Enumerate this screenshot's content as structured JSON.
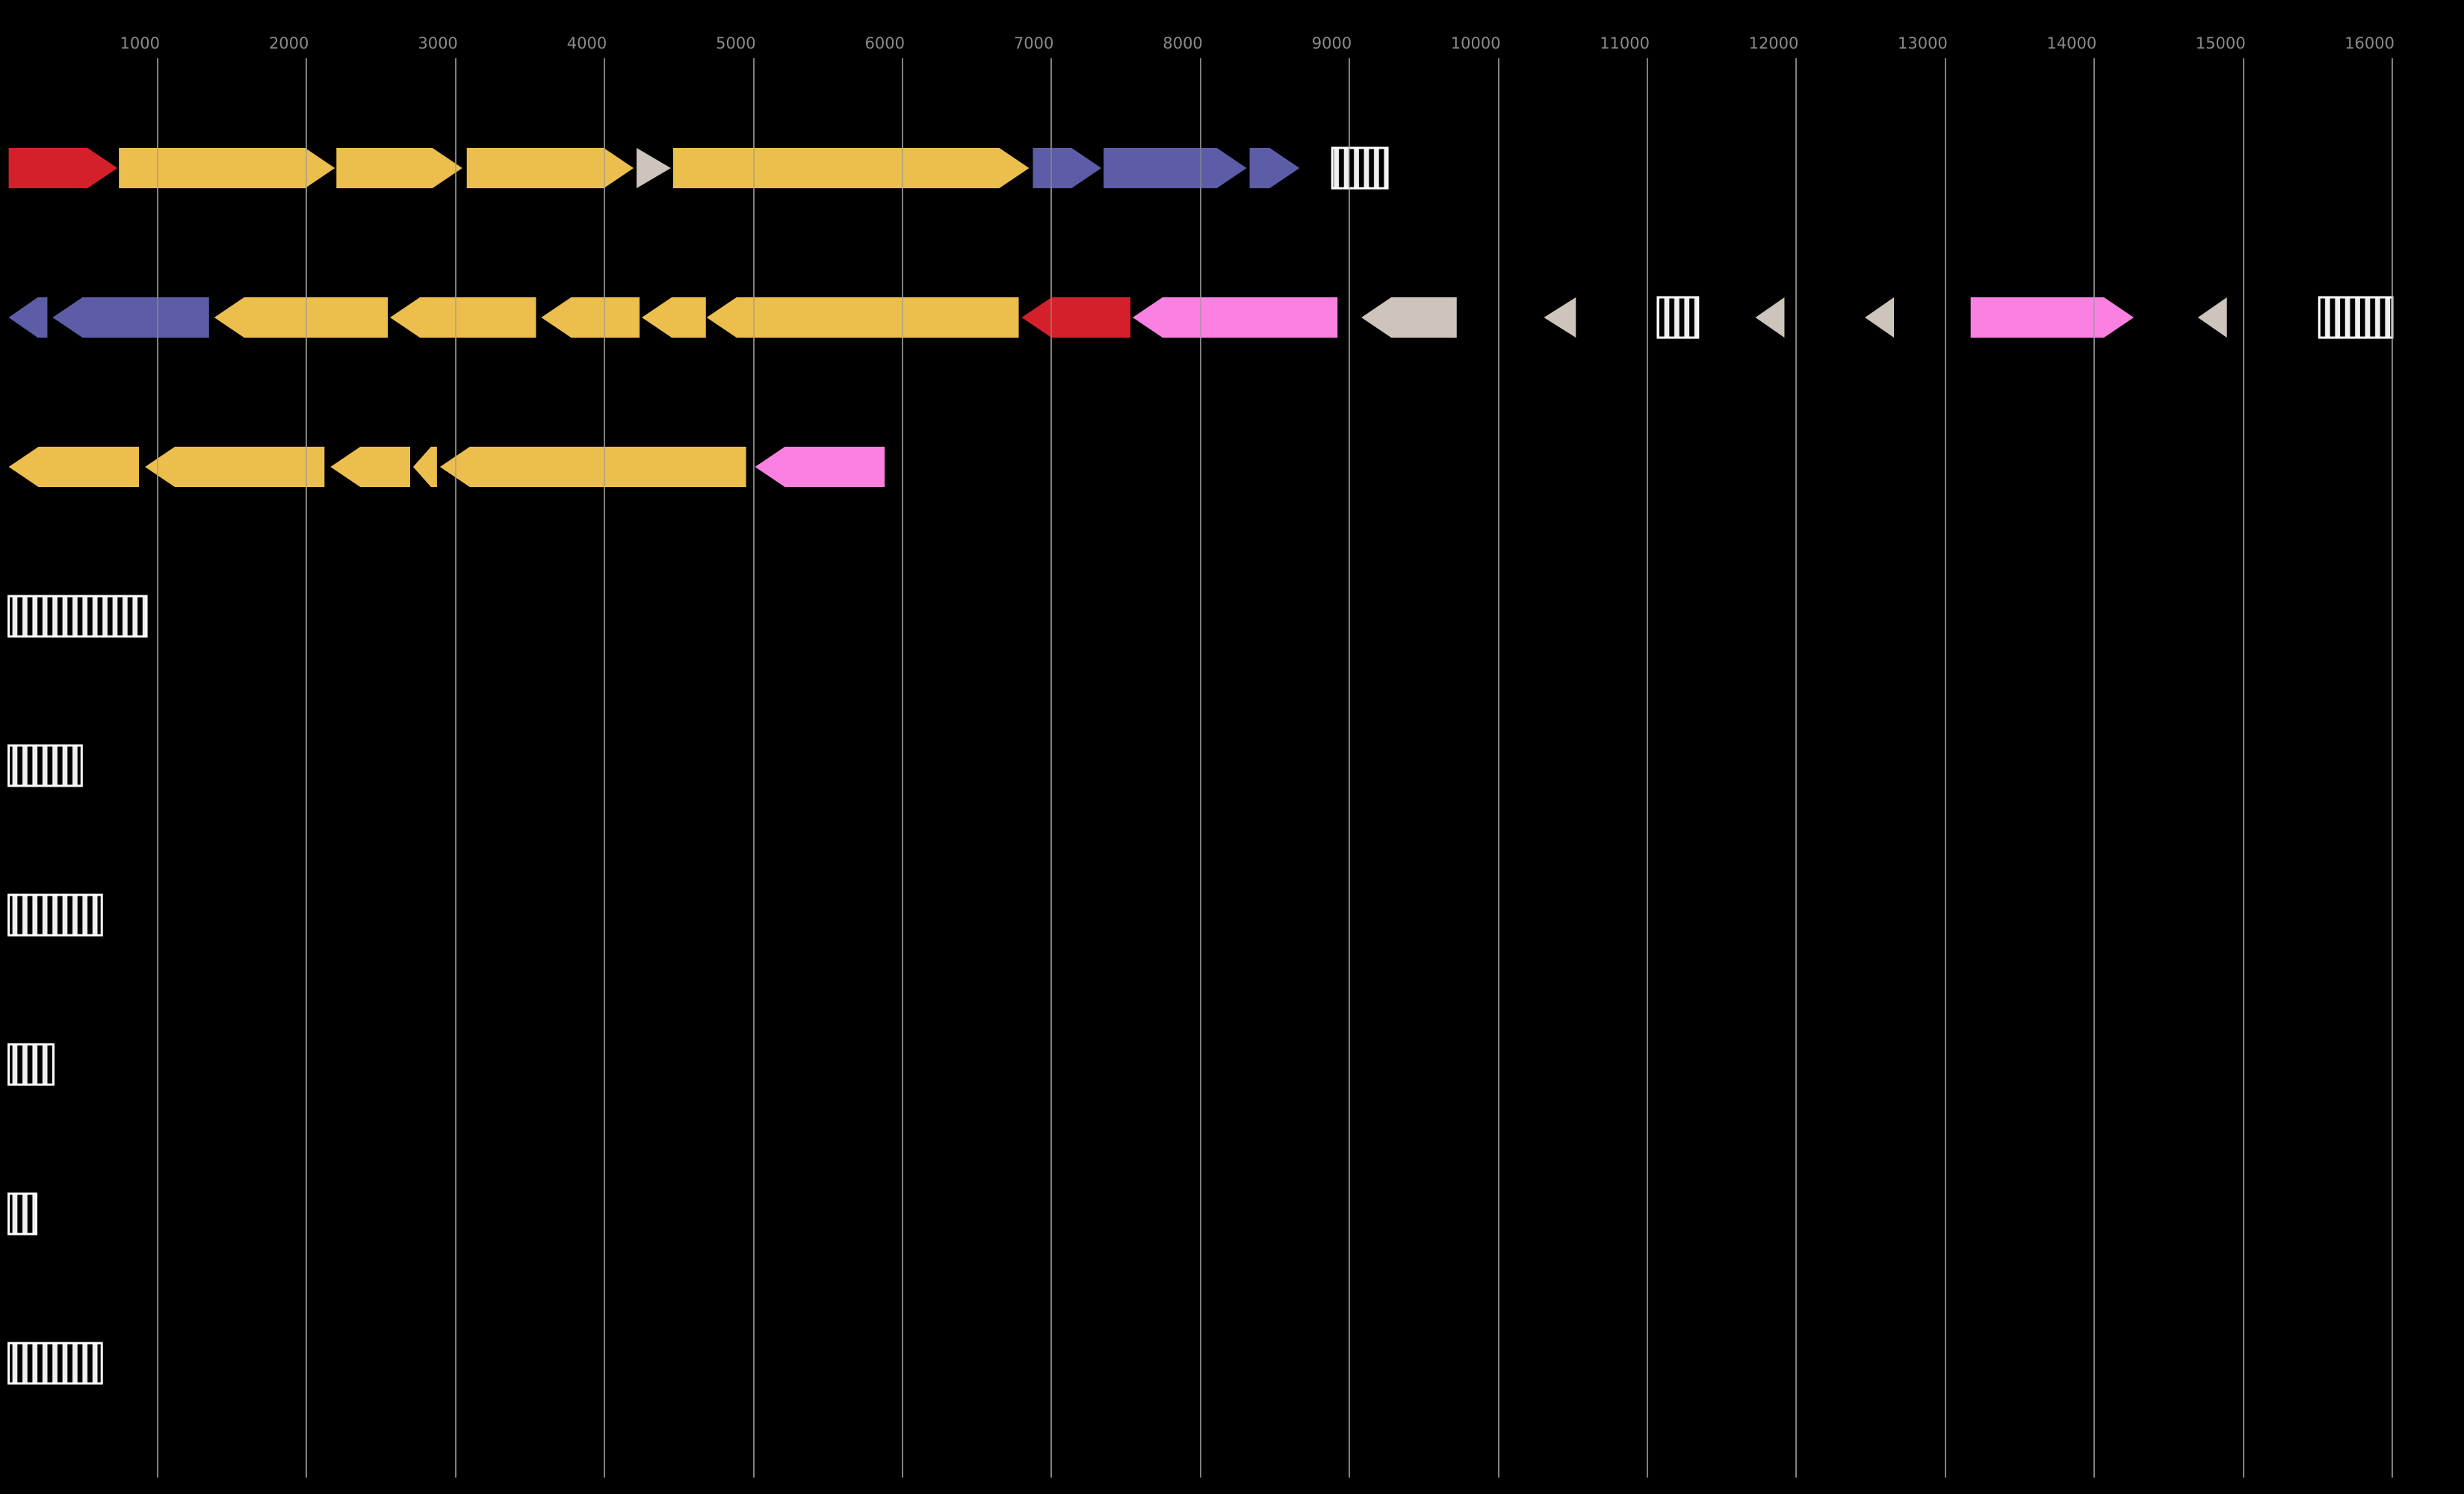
{
  "figure_type": "genome-feature-map",
  "palette": {
    "yellow": "#ECBE4D",
    "red": "#D4202A",
    "blue": "#5C5DA6",
    "pink": "#FA80E2",
    "gray": "#CDC4BB",
    "hatch_stripe": "#F0F0F0",
    "hatch_border": "#FFFFFF",
    "background": "#000000",
    "axis_label": "#8A8A8A",
    "gridline": "#7F7F7F"
  },
  "axis": {
    "tick_values": [
      1000,
      2000,
      3000,
      4000,
      5000,
      6000,
      7000,
      8000,
      9000,
      10000,
      11000,
      12000,
      13000,
      14000,
      15000,
      16000
    ],
    "tick_labels": [
      "1000",
      "2000",
      "3000",
      "4000",
      "5000",
      "6000",
      "7000",
      "8000",
      "9000",
      "10000",
      "11000",
      "12000",
      "13000",
      "14000",
      "15000",
      "16000"
    ]
  },
  "tracks": [
    {
      "name": "track-1",
      "features": [
        {
          "shape": "arrow",
          "direction": "right",
          "color": "red",
          "start": 0,
          "end": 730
        },
        {
          "shape": "arrow",
          "direction": "right",
          "color": "yellow",
          "start": 740,
          "end": 2190
        },
        {
          "shape": "arrow",
          "direction": "right",
          "color": "yellow",
          "start": 2200,
          "end": 3045
        },
        {
          "shape": "arrow",
          "direction": "right",
          "color": "yellow",
          "start": 3075,
          "end": 4195
        },
        {
          "shape": "triangle",
          "direction": "right",
          "color": "gray",
          "start": 4215,
          "end": 4445
        },
        {
          "shape": "arrow",
          "direction": "right",
          "color": "yellow",
          "start": 4460,
          "end": 6850
        },
        {
          "shape": "arrow",
          "direction": "right",
          "color": "blue",
          "start": 6875,
          "end": 7335
        },
        {
          "shape": "arrow",
          "direction": "right",
          "color": "blue",
          "start": 7350,
          "end": 8310
        },
        {
          "shape": "arrow",
          "direction": "right",
          "color": "blue",
          "start": 8330,
          "end": 8665
        },
        {
          "shape": "hatched-box",
          "direction": "none",
          "color": "hatch",
          "start": 8885,
          "end": 9255
        }
      ]
    },
    {
      "name": "track-2",
      "features": [
        {
          "shape": "arrow",
          "direction": "left",
          "color": "blue",
          "start": 0,
          "end": 260
        },
        {
          "shape": "arrow",
          "direction": "left",
          "color": "blue",
          "start": 295,
          "end": 1345
        },
        {
          "shape": "arrow",
          "direction": "left",
          "color": "yellow",
          "start": 1380,
          "end": 2545
        },
        {
          "shape": "arrow",
          "direction": "left",
          "color": "yellow",
          "start": 2560,
          "end": 3540
        },
        {
          "shape": "arrow",
          "direction": "left",
          "color": "yellow",
          "start": 3575,
          "end": 4235
        },
        {
          "shape": "arrow",
          "direction": "left",
          "color": "yellow",
          "start": 4250,
          "end": 4680
        },
        {
          "shape": "arrow",
          "direction": "left",
          "color": "yellow",
          "start": 4685,
          "end": 6780
        },
        {
          "shape": "arrow",
          "direction": "left",
          "color": "red",
          "start": 6800,
          "end": 7530
        },
        {
          "shape": "arrow",
          "direction": "left",
          "color": "pink",
          "start": 7545,
          "end": 8920
        },
        {
          "shape": "arrow",
          "direction": "left",
          "color": "gray",
          "start": 9080,
          "end": 9720
        },
        {
          "shape": "triangle",
          "direction": "left",
          "color": "gray",
          "start": 10305,
          "end": 10520
        },
        {
          "shape": "hatched-box",
          "direction": "none",
          "color": "hatch",
          "start": 11070,
          "end": 11340
        },
        {
          "shape": "triangle",
          "direction": "left",
          "color": "gray",
          "start": 11725,
          "end": 11920
        },
        {
          "shape": "triangle",
          "direction": "left",
          "color": "gray",
          "start": 12460,
          "end": 12655
        },
        {
          "shape": "arrow",
          "direction": "right",
          "color": "pink",
          "start": 13170,
          "end": 14265
        },
        {
          "shape": "triangle",
          "direction": "left",
          "color": "gray",
          "start": 14695,
          "end": 14890
        },
        {
          "shape": "hatched-box",
          "direction": "none",
          "color": "hatch",
          "start": 15510,
          "end": 16000
        }
      ]
    },
    {
      "name": "track-3",
      "features": [
        {
          "shape": "arrow",
          "direction": "left",
          "color": "yellow",
          "start": 0,
          "end": 875
        },
        {
          "shape": "arrow",
          "direction": "left",
          "color": "yellow",
          "start": 915,
          "end": 2120
        },
        {
          "shape": "arrow",
          "direction": "left",
          "color": "yellow",
          "start": 2160,
          "end": 2695
        },
        {
          "shape": "arrow",
          "direction": "left",
          "color": "yellow",
          "start": 2715,
          "end": 2875
        },
        {
          "shape": "arrow",
          "direction": "left",
          "color": "yellow",
          "start": 2895,
          "end": 4950
        },
        {
          "shape": "arrow",
          "direction": "left",
          "color": "pink",
          "start": 5010,
          "end": 5880
        }
      ]
    },
    {
      "name": "track-4",
      "features": [
        {
          "shape": "hatched-box",
          "direction": "none",
          "color": "hatch",
          "start": 0,
          "end": 925
        }
      ]
    },
    {
      "name": "track-5",
      "features": [
        {
          "shape": "hatched-box",
          "direction": "none",
          "color": "hatch",
          "start": 0,
          "end": 490
        }
      ]
    },
    {
      "name": "track-6",
      "features": [
        {
          "shape": "hatched-box",
          "direction": "none",
          "color": "hatch",
          "start": 0,
          "end": 625
        }
      ]
    },
    {
      "name": "track-7",
      "features": [
        {
          "shape": "hatched-box",
          "direction": "none",
          "color": "hatch",
          "start": 0,
          "end": 300
        }
      ]
    },
    {
      "name": "track-8",
      "features": [
        {
          "shape": "hatched-box",
          "direction": "none",
          "color": "hatch",
          "start": 0,
          "end": 185
        }
      ]
    },
    {
      "name": "track-9",
      "features": [
        {
          "shape": "hatched-box",
          "direction": "none",
          "color": "hatch",
          "start": 0,
          "end": 625
        }
      ]
    }
  ]
}
